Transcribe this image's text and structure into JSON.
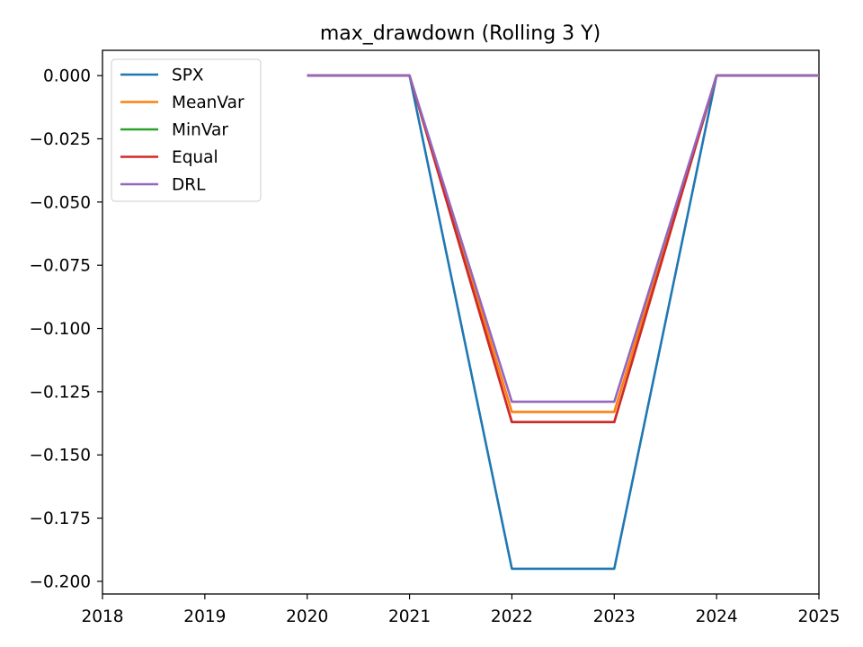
{
  "chart_data": {
    "type": "line",
    "title": "max_drawdown (Rolling 3 Y)",
    "xlabel": "",
    "ylabel": "",
    "xlim": [
      2018,
      2025
    ],
    "ylim": [
      -0.205,
      0.01
    ],
    "grid": false,
    "legend_position": "top-left",
    "x_ticks": [
      2018,
      2019,
      2020,
      2021,
      2022,
      2023,
      2024,
      2025
    ],
    "x_tick_labels": [
      "2018",
      "2019",
      "2020",
      "2021",
      "2022",
      "2023",
      "2024",
      "2025"
    ],
    "y_ticks": [
      0.0,
      -0.025,
      -0.05,
      -0.075,
      -0.1,
      -0.125,
      -0.15,
      -0.175,
      -0.2
    ],
    "y_tick_labels": [
      "0.000",
      "−0.025",
      "−0.050",
      "−0.075",
      "−0.100",
      "−0.125",
      "−0.150",
      "−0.175",
      "−0.200"
    ],
    "x": [
      2020,
      2021,
      2022,
      2023,
      2024,
      2025
    ],
    "series": [
      {
        "name": "SPX",
        "color": "#1f77b4",
        "values": [
          0.0,
          0.0,
          -0.195,
          -0.195,
          0.0,
          0.0
        ]
      },
      {
        "name": "MeanVar",
        "color": "#ff7f0e",
        "values": [
          0.0,
          0.0,
          -0.133,
          -0.133,
          0.0,
          0.0
        ]
      },
      {
        "name": "MinVar",
        "color": "#2ca02c",
        "values": [
          0.0,
          0.0,
          -0.137,
          -0.137,
          0.0,
          0.0
        ]
      },
      {
        "name": "Equal",
        "color": "#d62728",
        "values": [
          0.0,
          0.0,
          -0.137,
          -0.137,
          0.0,
          0.0
        ]
      },
      {
        "name": "DRL",
        "color": "#9467bd",
        "values": [
          0.0,
          0.0,
          -0.129,
          -0.129,
          0.0,
          0.0
        ]
      }
    ]
  }
}
